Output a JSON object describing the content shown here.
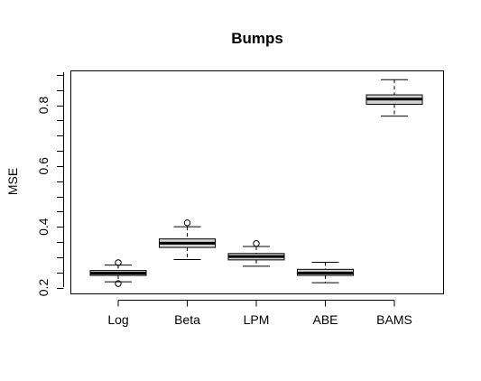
{
  "chart_data": {
    "type": "boxplot",
    "title": "Bumps",
    "xlabel": "",
    "ylabel": "MSE",
    "ylim": [
      0.18,
      0.9
    ],
    "yticks": [
      0.2,
      0.4,
      0.6,
      0.8
    ],
    "ytick_labels": [
      "0.2",
      "0.4",
      "0.6",
      "0.8"
    ],
    "grid": false,
    "box_fill": "#d3d3d3",
    "line_color": "#000000",
    "categories": [
      "Log",
      "Beta",
      "LPM",
      "ABE",
      "BAMS"
    ],
    "boxes": [
      {
        "label": "Log",
        "min": 0.219,
        "q1": 0.24,
        "median": 0.247,
        "q3": 0.256,
        "max": 0.274,
        "outliers": [
          0.282,
          0.213
        ]
      },
      {
        "label": "Beta",
        "min": 0.292,
        "q1": 0.332,
        "median": 0.346,
        "q3": 0.36,
        "max": 0.4,
        "outliers": [
          0.413
        ]
      },
      {
        "label": "LPM",
        "min": 0.27,
        "q1": 0.291,
        "median": 0.302,
        "q3": 0.312,
        "max": 0.335,
        "outliers": [
          0.345
        ]
      },
      {
        "label": "ABE",
        "min": 0.216,
        "q1": 0.24,
        "median": 0.248,
        "q3": 0.26,
        "max": 0.283,
        "outliers": []
      },
      {
        "label": "BAMS",
        "min": 0.764,
        "q1": 0.803,
        "median": 0.82,
        "q3": 0.834,
        "max": 0.884,
        "outliers": []
      }
    ]
  }
}
